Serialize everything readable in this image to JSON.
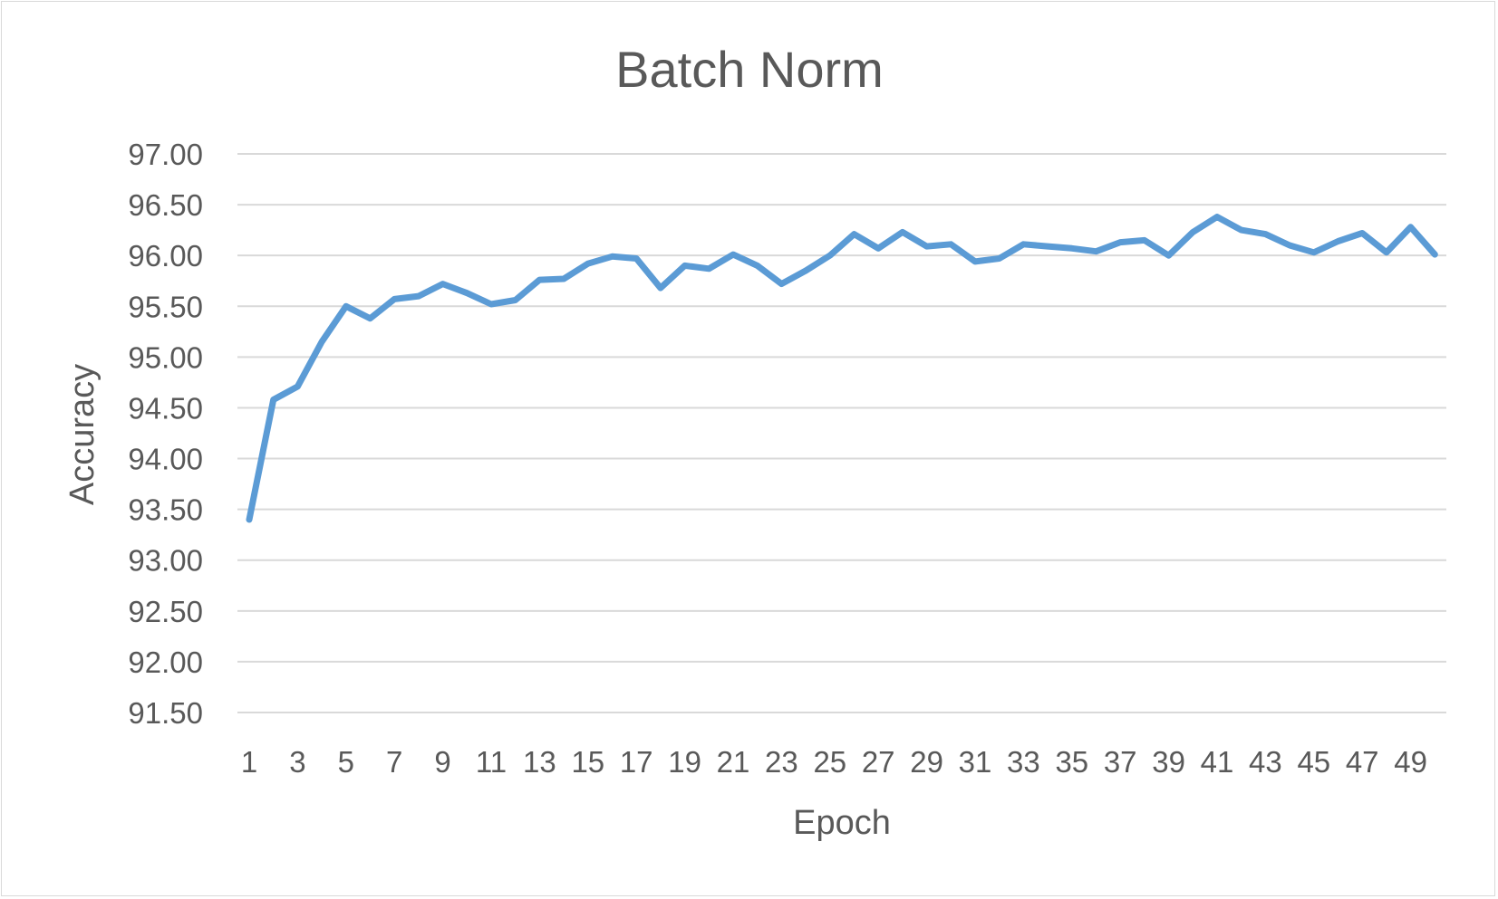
{
  "colors": {
    "series": "#5B9BD5",
    "grid": "#d9d9d9",
    "text": "#595959"
  },
  "chart_data": {
    "type": "line",
    "title": "Batch Norm",
    "xlabel": "Epoch",
    "ylabel": "Accuracy",
    "ylim": [
      91.5,
      97.0
    ],
    "ytick_step": 0.5,
    "ytick_decimals": 2,
    "grid": true,
    "legend": "none",
    "x": [
      1,
      2,
      3,
      4,
      5,
      6,
      7,
      8,
      9,
      10,
      11,
      12,
      13,
      14,
      15,
      16,
      17,
      18,
      19,
      20,
      21,
      22,
      23,
      24,
      25,
      26,
      27,
      28,
      29,
      30,
      31,
      32,
      33,
      34,
      35,
      36,
      37,
      38,
      39,
      40,
      41,
      42,
      43,
      44,
      45,
      46,
      47,
      48,
      49,
      50
    ],
    "xtick_labels": [
      "1",
      "3",
      "5",
      "7",
      "9",
      "11",
      "13",
      "15",
      "17",
      "19",
      "21",
      "23",
      "25",
      "27",
      "29",
      "31",
      "33",
      "35",
      "37",
      "39",
      "41",
      "43",
      "45",
      "47",
      "49"
    ],
    "series": [
      {
        "values": [
          93.4,
          94.58,
          94.71,
          95.15,
          95.5,
          95.38,
          95.57,
          95.6,
          95.72,
          95.63,
          95.52,
          95.56,
          95.76,
          95.77,
          95.92,
          95.99,
          95.97,
          95.68,
          95.9,
          95.87,
          96.01,
          95.9,
          95.72,
          95.85,
          96.0,
          96.21,
          96.07,
          96.23,
          96.09,
          96.11,
          95.94,
          95.97,
          96.11,
          96.09,
          96.07,
          96.04,
          96.13,
          96.15,
          96.0,
          96.23,
          96.38,
          96.25,
          96.21,
          96.1,
          96.03,
          96.14,
          96.22,
          96.03,
          96.28,
          96.01
        ]
      }
    ]
  }
}
